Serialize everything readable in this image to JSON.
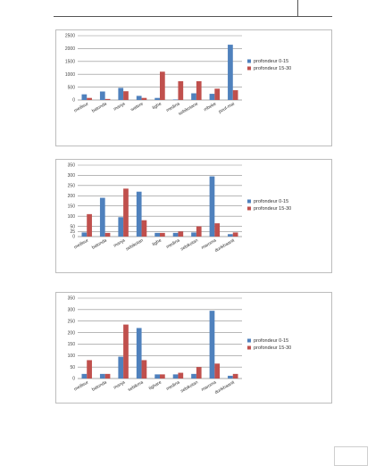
{
  "colors": {
    "series1": "#4f81bd",
    "series2": "#c0504d",
    "gridline": "#8c8c8c",
    "axis": "#8c8c8c"
  },
  "chart_data": [
    {
      "type": "bar",
      "categories": [
        "meilleur",
        "batonda",
        "manja",
        "watere",
        "tighe",
        "medina",
        "sebikotane",
        "mbeke",
        "pout-mai"
      ],
      "series": [
        {
          "name": "profondeur 0-15",
          "values": [
            220,
            330,
            470,
            160,
            80,
            20,
            260,
            240,
            2150
          ]
        },
        {
          "name": "profondeur 15-30",
          "values": [
            80,
            40,
            340,
            80,
            1100,
            730,
            730,
            440,
            380
          ]
        }
      ],
      "yticks": [
        "0",
        "500",
        "1000",
        "1500",
        "2000",
        "2500"
      ],
      "ylim": [
        0,
        2500
      ],
      "legend": "right",
      "grid": true
    },
    {
      "type": "bar",
      "categories": [
        "meilleur",
        "batonda",
        "manja",
        "sebikotan",
        "tighe",
        "medina",
        "sebikotan",
        "maroma",
        "dunkhaanit"
      ],
      "series": [
        {
          "name": "profondeur 0-15",
          "values": [
            20,
            190,
            95,
            220,
            18,
            18,
            20,
            295,
            12
          ]
        },
        {
          "name": "profondeur 15-30",
          "values": [
            110,
            18,
            235,
            80,
            18,
            25,
            50,
            65,
            20
          ]
        }
      ],
      "yticks": [
        "0",
        "25",
        "50",
        "100",
        "150",
        "200",
        "250",
        "300",
        "350"
      ],
      "ylim": [
        0,
        350
      ],
      "legend": "right",
      "grid": true
    },
    {
      "type": "bar",
      "categories": [
        "meilleur",
        "batonda",
        "manja",
        "sebikma",
        "tighare",
        "medina",
        "sebikotan",
        "maroma",
        "dunkhaanit"
      ],
      "series": [
        {
          "name": "profondeur 0-15",
          "values": [
            20,
            20,
            95,
            220,
            18,
            18,
            20,
            295,
            12
          ]
        },
        {
          "name": "profondeur 15-30",
          "values": [
            80,
            20,
            235,
            80,
            18,
            25,
            50,
            65,
            20
          ]
        }
      ],
      "yticks": [
        "0",
        "50",
        "100",
        "150",
        "200",
        "250",
        "300",
        "350"
      ],
      "ylim": [
        0,
        350
      ],
      "legend": "right",
      "grid": true
    }
  ]
}
